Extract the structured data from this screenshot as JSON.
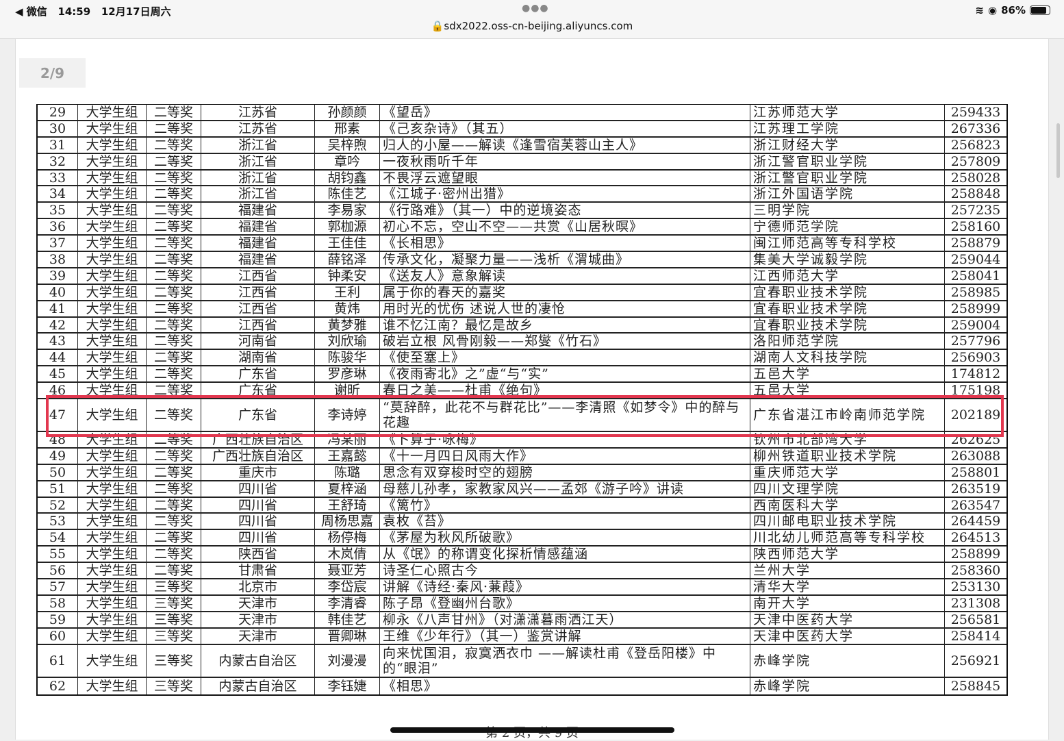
{
  "status": {
    "back": "◀ 微信",
    "time": "14:59",
    "date": "12月17日周六",
    "battery": "86%",
    "battery_level": 0.86
  },
  "browser": {
    "url": "sdx2022.oss-cn-beijing.aliyuncs.com"
  },
  "pdf": {
    "page_indicator": "2/9",
    "footer": "第 2 页，共 9 页",
    "highlight_color": "#e2374f",
    "highlighted_row": "47"
  },
  "rows": [
    [
      "29",
      "大学生组",
      "二等奖",
      "江苏省",
      "孙颜颜",
      "《望岳》",
      "江苏师范大学",
      "259433"
    ],
    [
      "30",
      "大学生组",
      "二等奖",
      "江苏省",
      "邢素",
      "《己亥杂诗》（其五）",
      "江苏理工学院",
      "267336"
    ],
    [
      "31",
      "大学生组",
      "二等奖",
      "浙江省",
      "吴梓煦",
      "归人的小屋——解读《逢雪宿芙蓉山主人》",
      "浙江财经大学",
      "256823"
    ],
    [
      "32",
      "大学生组",
      "二等奖",
      "浙江省",
      "章吟",
      "一夜秋雨听千年",
      "浙江警官职业学院",
      "257809"
    ],
    [
      "33",
      "大学生组",
      "二等奖",
      "浙江省",
      "胡钧鑫",
      "不畏浮云遮望眼",
      "浙江警官职业学院",
      "258028"
    ],
    [
      "34",
      "大学生组",
      "二等奖",
      "浙江省",
      "陈佳艺",
      "《江城子·密州出猎》",
      "浙江外国语学院",
      "258848"
    ],
    [
      "35",
      "大学生组",
      "二等奖",
      "福建省",
      "李易家",
      "《行路难》（其一）中的逆境姿态",
      "三明学院",
      "257235"
    ],
    [
      "36",
      "大学生组",
      "二等奖",
      "福建省",
      "郭枷源",
      "初心不忘，空山不空——共赏《山居秋暝》",
      "宁德师范学院",
      "258160"
    ],
    [
      "37",
      "大学生组",
      "二等奖",
      "福建省",
      "王佳佳",
      "《长相思》",
      "闽江师范高等专科学校",
      "258879"
    ],
    [
      "38",
      "大学生组",
      "二等奖",
      "福建省",
      "薛铭泽",
      "传承文化，凝聚力量——浅析《渭城曲》",
      "集美大学诚毅学院",
      "259044"
    ],
    [
      "39",
      "大学生组",
      "二等奖",
      "江西省",
      "钟柔安",
      "《送友人》意象解读",
      "江西师范大学",
      "258041"
    ],
    [
      "40",
      "大学生组",
      "二等奖",
      "江西省",
      "王利",
      "属于你的春天的嘉奖",
      "宜春职业技术学院",
      "258985"
    ],
    [
      "41",
      "大学生组",
      "二等奖",
      "江西省",
      "黄炜",
      "用时光的忧伤 述说人世的凄怆",
      "宜春职业技术学院",
      "258999"
    ],
    [
      "42",
      "大学生组",
      "二等奖",
      "江西省",
      "黄梦雅",
      "谁不忆江南？最忆是故乡",
      "宜春职业技术学院",
      "259004"
    ],
    [
      "43",
      "大学生组",
      "二等奖",
      "河南省",
      "刘欣瑜",
      "破岩立根 风骨刚毅——郑燮《竹石》",
      "洛阳师范学院",
      "257796"
    ],
    [
      "44",
      "大学生组",
      "二等奖",
      "湖南省",
      "陈骏华",
      "《使至塞上》",
      "湖南人文科技学院",
      "256903"
    ],
    [
      "45",
      "大学生组",
      "二等奖",
      "广东省",
      "罗彦琳",
      "《夜雨寄北》之”虚“与“实”",
      "五邑大学",
      "174812"
    ],
    [
      "46",
      "大学生组",
      "二等奖",
      "广东省",
      "谢昕",
      "春日之美——杜甫《绝句》",
      "五邑大学",
      "175198"
    ],
    [
      "47",
      "大学生组",
      "二等奖",
      "广东省",
      "李诗婷",
      "“莫辞醉，此花不与群花比”——李清照《如梦令》中的醉与花趣",
      "广东省湛江市岭南师范学院",
      "202189"
    ],
    [
      "48",
      "大学生组",
      "二等奖",
      "广西壮族自治区",
      "冯某丽",
      "《卜算子·咏梅》",
      "钦州市北部湾大学",
      "262625"
    ],
    [
      "49",
      "大学生组",
      "二等奖",
      "广西壮族自治区",
      "王嘉懿",
      "《十一月四日风雨大作》",
      "柳州铁道职业技术学院",
      "263088"
    ],
    [
      "50",
      "大学生组",
      "二等奖",
      "重庆市",
      "陈璐",
      "思念有双穿梭时空的翅膀",
      "重庆师范大学",
      "258801"
    ],
    [
      "51",
      "大学生组",
      "二等奖",
      "四川省",
      "夏梓涵",
      "母慈儿孙孝，家教家风兴——孟郊《游子吟》讲读",
      "四川文理学院",
      "263519"
    ],
    [
      "52",
      "大学生组",
      "二等奖",
      "四川省",
      "王舒琦",
      "《篱竹》",
      "西南医科大学",
      "263547"
    ],
    [
      "53",
      "大学生组",
      "二等奖",
      "四川省",
      "周杨思嘉",
      "袁枚《苔》",
      "四川邮电职业技术学院",
      "264459"
    ],
    [
      "54",
      "大学生组",
      "二等奖",
      "四川省",
      "杨停梅",
      "《茅屋为秋风所破歌》",
      "川北幼儿师范高等专科学校",
      "264513"
    ],
    [
      "55",
      "大学生组",
      "二等奖",
      "陕西省",
      "木岚倩",
      "从《氓》的称谓变化探析情感蕴涵",
      "陕西师范大学",
      "258899"
    ],
    [
      "56",
      "大学生组",
      "二等奖",
      "甘肃省",
      "聂亚芳",
      "诗圣仁心照古今",
      "兰州大学",
      "258360"
    ],
    [
      "57",
      "大学生组",
      "三等奖",
      "北京市",
      "李岱宸",
      "讲解《诗经·秦风·蒹葭》",
      "清华大学",
      "253130"
    ],
    [
      "58",
      "大学生组",
      "三等奖",
      "天津市",
      "李清睿",
      "陈子昂《登幽州台歌》",
      "南开大学",
      "231308"
    ],
    [
      "59",
      "大学生组",
      "三等奖",
      "天津市",
      "韩佳艺",
      "柳永《八声甘州》（对潇潇暮雨洒江天）",
      "天津中医药大学",
      "256581"
    ],
    [
      "60",
      "大学生组",
      "三等奖",
      "天津市",
      "晋卿琳",
      "王维《少年行》（其一）鉴赏讲解",
      "天津中医药大学",
      "258414"
    ],
    [
      "61",
      "大学生组",
      "三等奖",
      "内蒙古自治区",
      "刘漫漫",
      "向来忧国泪，寂寞洒衣巾 ——解读杜甫《登岳阳楼》中的“眼泪”",
      "赤峰学院",
      "256921"
    ],
    [
      "62",
      "大学生组",
      "三等奖",
      "内蒙古自治区",
      "李钰婕",
      "《相思》",
      "赤峰学院",
      "258845"
    ]
  ]
}
